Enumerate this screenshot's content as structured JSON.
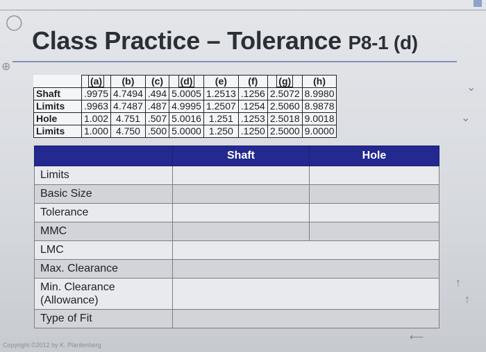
{
  "title": {
    "main": "Class Practice – Tolerance",
    "suffix": "P8-1 (d)"
  },
  "limits_table": {
    "columns": [
      "(a)",
      "(b)",
      "(c)",
      "(d)",
      "(e)",
      "(f)",
      "(g)",
      "(h)"
    ],
    "rows": [
      {
        "label": "Shaft",
        "values": [
          ".9975",
          "4.7494",
          ".494",
          "5.0005",
          "1.2513",
          ".1256",
          "2.5072",
          "8.9980"
        ]
      },
      {
        "label": "Limits",
        "values": [
          ".9963",
          "4.7487",
          ".487",
          "4.9995",
          "1.2507",
          ".1254",
          "2.5060",
          "8.9878"
        ]
      },
      {
        "label": "Hole",
        "values": [
          "1.002",
          "4.751",
          ".507",
          "5.0016",
          "1.251",
          ".1253",
          "2.5018",
          "9.0018"
        ]
      },
      {
        "label": "Limits",
        "values": [
          "1.000",
          "4.750",
          ".500",
          "5.0000",
          "1.250",
          ".1250",
          "2.5000",
          "9.0000"
        ]
      }
    ]
  },
  "worksheet": {
    "headers": [
      "",
      "Shaft",
      "Hole"
    ],
    "rows": [
      "Limits",
      "Basic Size",
      "Tolerance",
      "MMC",
      "LMC",
      "Max. Clearance",
      "Min. Clearance\n(Allowance)",
      "Type of Fit"
    ]
  },
  "copyright": "Copyright ©2012 by K. Plantenberg",
  "colors": {
    "header_bg": "#24298f",
    "accent": "#7f93b8"
  }
}
